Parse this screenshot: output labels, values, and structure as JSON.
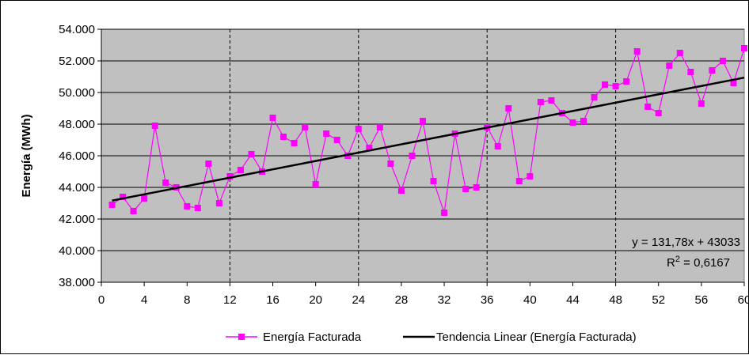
{
  "chart_data": {
    "type": "line",
    "ylabel": "Energía (MWh)",
    "xlabel": "",
    "xlim": [
      0,
      60
    ],
    "ylim": [
      38000,
      54000
    ],
    "x_ticks": [
      0,
      4,
      8,
      12,
      16,
      20,
      24,
      28,
      32,
      36,
      40,
      44,
      48,
      52,
      56,
      60
    ],
    "x_tick_labels": [
      "0",
      "4",
      "8",
      "12",
      "16",
      "20",
      "24",
      "28",
      "32",
      "36",
      "40",
      "44",
      "48",
      "52",
      "56",
      "60"
    ],
    "y_ticks": [
      38000,
      40000,
      42000,
      44000,
      46000,
      48000,
      50000,
      52000,
      54000
    ],
    "y_tick_labels": [
      "38.000",
      "40.000",
      "42.000",
      "44.000",
      "46.000",
      "48.000",
      "50.000",
      "52.000",
      "54.000"
    ],
    "dashed_gridlines_x": [
      12,
      24,
      36,
      48
    ],
    "grid": true,
    "plot_background": "#c0c0c0",
    "legend_position": "bottom",
    "series": [
      {
        "name": "Energía Facturada",
        "color": "#ff00ff",
        "marker": "square",
        "x": [
          1,
          2,
          3,
          4,
          5,
          6,
          7,
          8,
          9,
          10,
          11,
          12,
          13,
          14,
          15,
          16,
          17,
          18,
          19,
          20,
          21,
          22,
          23,
          24,
          25,
          26,
          27,
          28,
          29,
          30,
          31,
          32,
          33,
          34,
          35,
          36,
          37,
          38,
          39,
          40,
          41,
          42,
          43,
          44,
          45,
          46,
          47,
          48,
          49,
          50,
          51,
          52,
          53,
          54,
          55,
          56,
          57,
          58,
          59,
          60
        ],
        "values": [
          42900,
          43400,
          42500,
          43300,
          47900,
          44300,
          44000,
          42800,
          42700,
          45500,
          43000,
          44700,
          45100,
          46100,
          45000,
          48400,
          47200,
          46800,
          47800,
          44200,
          47400,
          47000,
          46000,
          47700,
          46500,
          47800,
          45500,
          43800,
          46000,
          48200,
          44400,
          42400,
          47400,
          43900,
          44000,
          47800,
          46600,
          49000,
          44400,
          44700,
          49400,
          49500,
          48700,
          48100,
          48200,
          49700,
          50500,
          50400,
          50700,
          52600,
          49100,
          48700,
          51700,
          52500,
          51300,
          49300,
          51400,
          52000,
          50600,
          52800
        ]
      },
      {
        "name": "Tendencia Linear (Energía Facturada)",
        "color": "#000000",
        "type": "trendline",
        "slope": 131.78,
        "intercept": 43033,
        "x_range": [
          1,
          60
        ]
      }
    ],
    "annotations": {
      "equation": "y = 131,78x + 43033",
      "r2_prefix": "R",
      "r2_superscript": "2",
      "r2_value": " = 0,6167"
    }
  }
}
